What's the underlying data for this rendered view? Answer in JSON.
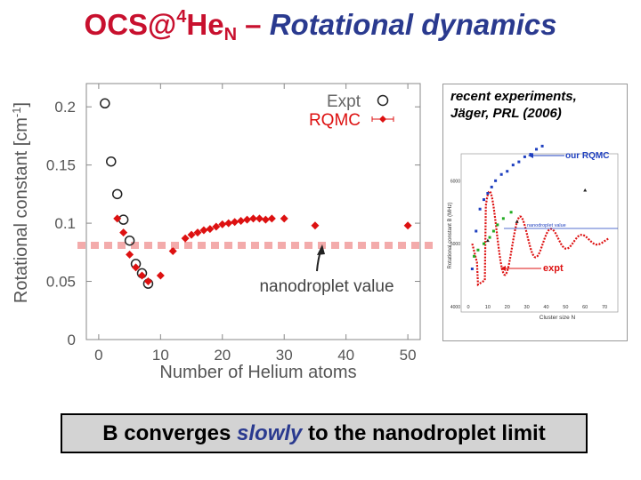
{
  "title": {
    "part1": "OCS@",
    "sup": "4",
    "part2": "He",
    "sub": "N",
    "dash": " – ",
    "part3": "Rotational dynamics"
  },
  "colors": {
    "title_red": "#c8102e",
    "title_blue": "#2a3a8f",
    "rqmc": "#dd1111",
    "nanodroplet_line": "#dd1111",
    "expt_marker": "#222222",
    "inset_blue": "#1e3fbf",
    "inset_green": "#22aa22"
  },
  "chart_data": {
    "type": "scatter",
    "title": "",
    "xlabel": "Number of Helium atoms",
    "ylabel": "Rotational constant [cm",
    "ylabel_sup": "-1",
    "ylabel_end": "]",
    "xlim": [
      -2,
      52
    ],
    "ylim": [
      0,
      0.22
    ],
    "xticks": [
      0,
      10,
      20,
      30,
      40,
      50
    ],
    "yticks": [
      0,
      0.05,
      0.1,
      0.15,
      0.2
    ],
    "ytick_labels": [
      "0",
      "0.05",
      "0.1",
      "0.15",
      "0.2"
    ],
    "grid": false,
    "legend_position": "top-right",
    "series": [
      {
        "name": "Expt",
        "marker": "open-circle",
        "x": [
          1,
          2,
          3,
          4,
          5,
          6,
          7,
          8
        ],
        "y": [
          0.203,
          0.153,
          0.125,
          0.103,
          0.085,
          0.065,
          0.057,
          0.048
        ]
      },
      {
        "name": "RQMC",
        "marker": "filled-diamond",
        "x": [
          3,
          4,
          5,
          6,
          7,
          8,
          10,
          12,
          14,
          15,
          16,
          17,
          18,
          19,
          20,
          21,
          22,
          23,
          24,
          25,
          26,
          27,
          28,
          30,
          35,
          50
        ],
        "y": [
          0.104,
          0.092,
          0.073,
          0.062,
          0.055,
          0.05,
          0.055,
          0.076,
          0.087,
          0.09,
          0.092,
          0.094,
          0.095,
          0.097,
          0.099,
          0.1,
          0.101,
          0.102,
          0.103,
          0.104,
          0.104,
          0.103,
          0.104,
          0.104,
          0.098,
          0.098
        ]
      }
    ],
    "reference_line": {
      "y": 0.081,
      "style": "dashed-band"
    },
    "annotations": [
      "nanodroplet value"
    ]
  },
  "inset": {
    "caption_line1": "recent experiments,",
    "caption_line2": "Jäger, PRL (2006)",
    "label_our_rqmc": "our RQMC",
    "label_expt": "expt",
    "label_nanodroplet": "nanodroplet value",
    "xlabel": "Cluster size  N",
    "ylabel": "Rotational constant  B (MHz)",
    "xticks": [
      "0",
      "10",
      "20",
      "30",
      "40",
      "50",
      "60",
      "70"
    ],
    "yticks": [
      "6000",
      "5000",
      "4000"
    ],
    "qmc_points": [
      [
        2,
        4.6
      ],
      [
        4,
        5.2
      ],
      [
        6,
        5.55
      ],
      [
        8,
        5.7
      ],
      [
        10,
        5.8
      ],
      [
        12,
        5.9
      ],
      [
        14,
        6.0
      ],
      [
        17,
        6.1
      ],
      [
        20,
        6.15
      ],
      [
        23,
        6.25
      ],
      [
        26,
        6.3
      ],
      [
        29,
        6.38
      ],
      [
        32,
        6.42
      ],
      [
        35,
        6.5
      ],
      [
        38,
        6.55
      ]
    ],
    "green_points": [
      [
        3,
        4.8
      ],
      [
        5,
        4.9
      ],
      [
        8,
        5.0
      ],
      [
        11,
        5.1
      ],
      [
        13,
        5.2
      ],
      [
        15,
        5.3
      ],
      [
        18,
        5.4
      ],
      [
        22,
        5.5
      ]
    ],
    "tri_points": [
      [
        10,
        5.05
      ],
      [
        25,
        5.35
      ],
      [
        60,
        5.85
      ]
    ]
  },
  "footer": {
    "before": "B converges ",
    "emph": "slowly",
    "after": " to the nanodroplet limit"
  }
}
